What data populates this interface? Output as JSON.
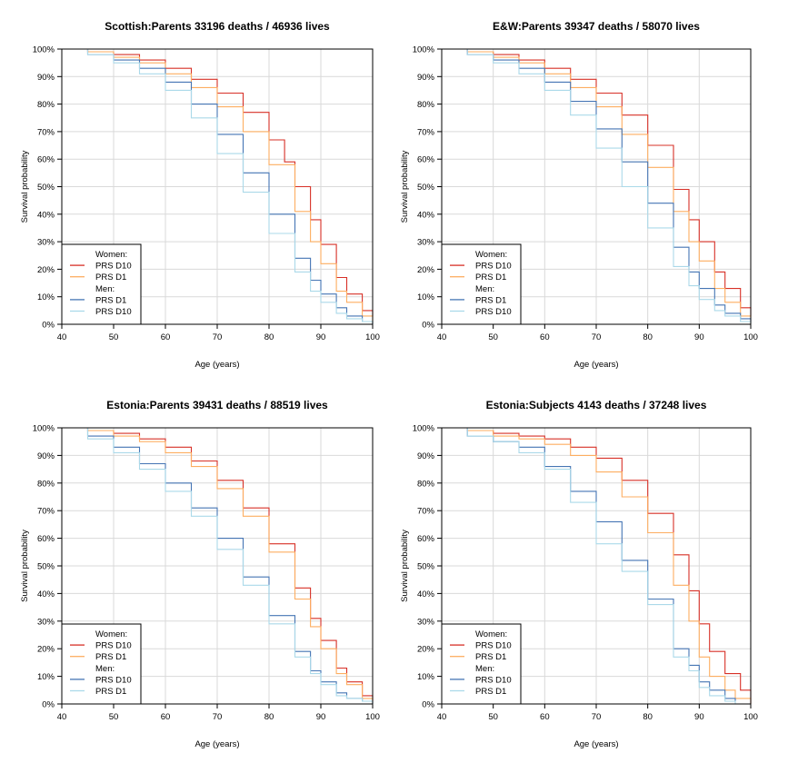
{
  "chart_data": [
    {
      "type": "line",
      "title": "Scottish:Parents 33196 deaths / 46936 lives",
      "xlabel": "Age (years)",
      "ylabel": "Survival probability",
      "xlim": [
        40,
        100
      ],
      "ylim": [
        0,
        100
      ],
      "xticks": [
        "40",
        "50",
        "60",
        "70",
        "80",
        "90",
        "100"
      ],
      "yticks": [
        "0%",
        "10%",
        "20%",
        "30%",
        "40%",
        "50%",
        "60%",
        "70%",
        "80%",
        "90%",
        "100%"
      ],
      "legend": {
        "placement": "bottom-left",
        "women_heading": "Women:",
        "men_heading": "Men:"
      },
      "series": [
        {
          "name": "PRS D10",
          "group": "Women",
          "color": "#d73027",
          "x": [
            40,
            45,
            50,
            55,
            60,
            65,
            70,
            75,
            80,
            83,
            85,
            88,
            90,
            93,
            95,
            98,
            100
          ],
          "y": [
            100,
            99,
            98,
            96,
            93,
            89,
            84,
            77,
            67,
            59,
            50,
            38,
            29,
            17,
            11,
            5,
            3
          ]
        },
        {
          "name": "PRS D1",
          "group": "Women",
          "color": "#fdae61",
          "x": [
            40,
            45,
            50,
            55,
            60,
            65,
            70,
            75,
            80,
            85,
            88,
            90,
            93,
            95,
            98,
            100
          ],
          "y": [
            100,
            99,
            97,
            95,
            91,
            86,
            79,
            70,
            58,
            41,
            30,
            22,
            12,
            8,
            3,
            1
          ]
        },
        {
          "name": "PRS D1",
          "group": "Men",
          "color": "#4575b4",
          "x": [
            40,
            45,
            50,
            55,
            60,
            65,
            70,
            75,
            80,
            85,
            88,
            90,
            93,
            95,
            98,
            100
          ],
          "y": [
            100,
            98,
            96,
            93,
            88,
            80,
            69,
            55,
            40,
            24,
            16,
            11,
            6,
            3,
            1,
            0
          ]
        },
        {
          "name": "PRS D10",
          "group": "Men",
          "color": "#abd9e9",
          "x": [
            40,
            45,
            50,
            55,
            60,
            65,
            70,
            75,
            80,
            85,
            88,
            90,
            93,
            95,
            98,
            100
          ],
          "y": [
            100,
            98,
            95,
            91,
            85,
            75,
            62,
            48,
            33,
            19,
            12,
            8,
            4,
            2,
            1,
            0
          ]
        }
      ]
    },
    {
      "type": "line",
      "title": "E&W:Parents 39347 deaths / 58070 lives",
      "xlabel": "Age (years)",
      "ylabel": "Survival probability",
      "xlim": [
        40,
        100
      ],
      "ylim": [
        0,
        100
      ],
      "xticks": [
        "40",
        "50",
        "60",
        "70",
        "80",
        "90",
        "100"
      ],
      "yticks": [
        "0%",
        "10%",
        "20%",
        "30%",
        "40%",
        "50%",
        "60%",
        "70%",
        "80%",
        "90%",
        "100%"
      ],
      "legend": {
        "placement": "bottom-left",
        "women_heading": "Women:",
        "men_heading": "Men:"
      },
      "series": [
        {
          "name": "PRS D10",
          "group": "Women",
          "color": "#d73027",
          "x": [
            40,
            45,
            50,
            55,
            60,
            65,
            70,
            75,
            80,
            85,
            88,
            90,
            93,
            95,
            98,
            100
          ],
          "y": [
            100,
            99,
            98,
            96,
            93,
            89,
            84,
            76,
            65,
            49,
            38,
            30,
            19,
            13,
            6,
            3
          ]
        },
        {
          "name": "PRS D1",
          "group": "Women",
          "color": "#fdae61",
          "x": [
            40,
            45,
            50,
            55,
            60,
            65,
            70,
            75,
            80,
            85,
            88,
            90,
            93,
            95,
            98,
            100
          ],
          "y": [
            100,
            99,
            97,
            95,
            91,
            86,
            79,
            69,
            57,
            41,
            30,
            23,
            13,
            8,
            3,
            2
          ]
        },
        {
          "name": "PRS D1",
          "group": "Men",
          "color": "#4575b4",
          "x": [
            40,
            45,
            50,
            55,
            60,
            65,
            70,
            75,
            80,
            85,
            88,
            90,
            93,
            95,
            98,
            100
          ],
          "y": [
            100,
            98,
            96,
            93,
            88,
            81,
            71,
            59,
            44,
            28,
            19,
            13,
            7,
            4,
            2,
            1
          ]
        },
        {
          "name": "PRS D10",
          "group": "Men",
          "color": "#abd9e9",
          "x": [
            40,
            45,
            50,
            55,
            60,
            65,
            70,
            75,
            80,
            85,
            88,
            90,
            93,
            95,
            98,
            100
          ],
          "y": [
            100,
            98,
            95,
            91,
            85,
            76,
            64,
            50,
            35,
            21,
            14,
            9,
            5,
            3,
            1,
            0
          ]
        }
      ]
    },
    {
      "type": "line",
      "title": "Estonia:Parents 39431 deaths / 88519 lives",
      "xlabel": "Age (years)",
      "ylabel": "Survival probability",
      "xlim": [
        40,
        100
      ],
      "ylim": [
        0,
        100
      ],
      "xticks": [
        "40",
        "50",
        "60",
        "70",
        "80",
        "90",
        "100"
      ],
      "yticks": [
        "0%",
        "10%",
        "20%",
        "30%",
        "40%",
        "50%",
        "60%",
        "70%",
        "80%",
        "90%",
        "100%"
      ],
      "legend": {
        "placement": "bottom-left",
        "women_heading": "Women:",
        "men_heading": "Men:"
      },
      "series": [
        {
          "name": "PRS D10",
          "group": "Women",
          "color": "#d73027",
          "x": [
            40,
            45,
            50,
            55,
            60,
            65,
            70,
            75,
            80,
            85,
            88,
            90,
            93,
            95,
            98,
            100
          ],
          "y": [
            100,
            99,
            98,
            96,
            93,
            88,
            81,
            71,
            58,
            42,
            31,
            23,
            13,
            8,
            3,
            1
          ]
        },
        {
          "name": "PRS D1",
          "group": "Women",
          "color": "#fdae61",
          "x": [
            40,
            45,
            50,
            55,
            60,
            65,
            70,
            75,
            80,
            85,
            88,
            90,
            93,
            95,
            98,
            100
          ],
          "y": [
            100,
            99,
            97,
            95,
            91,
            86,
            78,
            68,
            55,
            38,
            28,
            20,
            11,
            7,
            2,
            1
          ]
        },
        {
          "name": "PRS D10",
          "group": "Men",
          "color": "#4575b4",
          "x": [
            40,
            45,
            50,
            55,
            60,
            65,
            70,
            75,
            80,
            85,
            88,
            90,
            93,
            95,
            98,
            100
          ],
          "y": [
            100,
            97,
            93,
            87,
            80,
            71,
            60,
            46,
            32,
            19,
            12,
            8,
            4,
            2,
            1,
            0
          ]
        },
        {
          "name": "PRS D1",
          "group": "Men",
          "color": "#abd9e9",
          "x": [
            40,
            45,
            50,
            55,
            60,
            65,
            70,
            75,
            80,
            85,
            88,
            90,
            93,
            95,
            98,
            100
          ],
          "y": [
            100,
            96,
            91,
            85,
            77,
            68,
            56,
            43,
            29,
            17,
            11,
            7,
            3,
            2,
            1,
            0
          ]
        }
      ]
    },
    {
      "type": "line",
      "title": "Estonia:Subjects 4143 deaths / 37248 lives",
      "xlabel": "Age (years)",
      "ylabel": "Survival probability",
      "xlim": [
        40,
        100
      ],
      "ylim": [
        0,
        100
      ],
      "xticks": [
        "40",
        "50",
        "60",
        "70",
        "80",
        "90",
        "100"
      ],
      "yticks": [
        "0%",
        "10%",
        "20%",
        "30%",
        "40%",
        "50%",
        "60%",
        "70%",
        "80%",
        "90%",
        "100%"
      ],
      "legend": {
        "placement": "bottom-left",
        "women_heading": "Women:",
        "men_heading": "Men:"
      },
      "series": [
        {
          "name": "PRS D10",
          "group": "Women",
          "color": "#d73027",
          "x": [
            40,
            45,
            50,
            55,
            60,
            65,
            70,
            75,
            80,
            85,
            88,
            90,
            92,
            95,
            98,
            100
          ],
          "y": [
            100,
            99,
            98,
            97,
            96,
            93,
            89,
            81,
            69,
            54,
            41,
            29,
            19,
            11,
            5,
            0
          ]
        },
        {
          "name": "PRS D1",
          "group": "Women",
          "color": "#fdae61",
          "x": [
            40,
            45,
            50,
            55,
            60,
            65,
            70,
            75,
            80,
            85,
            88,
            90,
            92,
            95,
            97,
            100
          ],
          "y": [
            100,
            99,
            97,
            96,
            94,
            90,
            84,
            75,
            62,
            43,
            30,
            17,
            10,
            5,
            2,
            0
          ]
        },
        {
          "name": "PRS D10",
          "group": "Men",
          "color": "#4575b4",
          "x": [
            40,
            45,
            50,
            55,
            60,
            65,
            70,
            75,
            80,
            85,
            88,
            90,
            92,
            95,
            97
          ],
          "y": [
            100,
            97,
            95,
            93,
            86,
            77,
            66,
            52,
            38,
            20,
            14,
            8,
            5,
            2,
            1
          ]
        },
        {
          "name": "PRS D1",
          "group": "Men",
          "color": "#abd9e9",
          "x": [
            40,
            45,
            50,
            55,
            60,
            65,
            70,
            75,
            80,
            85,
            88,
            90,
            92,
            95,
            97
          ],
          "y": [
            100,
            97,
            95,
            91,
            85,
            73,
            58,
            48,
            36,
            17,
            12,
            6,
            3,
            1,
            0
          ]
        }
      ]
    }
  ]
}
